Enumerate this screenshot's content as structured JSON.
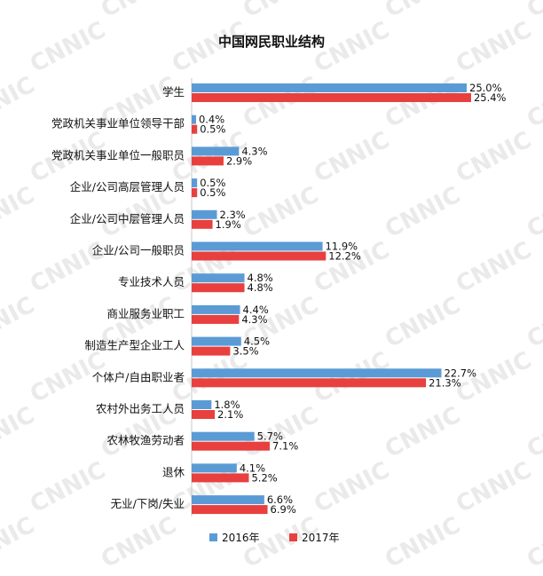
{
  "chart_data": {
    "type": "bar",
    "orientation": "horizontal",
    "title": "中国网民职业结构",
    "xlabel": "",
    "ylabel": "",
    "xlim": [
      0,
      30
    ],
    "unit": "%",
    "grid": false,
    "legend_position": "bottom",
    "categories": [
      "学生",
      "党政机关事业单位领导干部",
      "党政机关事业单位一般职员",
      "企业/公司高层管理人员",
      "企业/公司中层管理人员",
      "企业/公司一般职员",
      "专业技术人员",
      "商业服务业职工",
      "制造生产型企业工人",
      "个体户/自由职业者",
      "农村外出务工人员",
      "农林牧渔劳动者",
      "退休",
      "无业/下岗/失业"
    ],
    "series": [
      {
        "name": "2016年",
        "color": "#5b9bd5",
        "values": [
          25.0,
          0.4,
          4.3,
          0.5,
          2.3,
          11.9,
          4.8,
          4.4,
          4.5,
          22.7,
          1.8,
          5.7,
          4.1,
          6.6
        ],
        "labels": [
          "25.0%",
          "0.4%",
          "4.3%",
          "0.5%",
          "2.3%",
          "11.9%",
          "4.8%",
          "4.4%",
          "4.5%",
          "22.7%",
          "1.8%",
          "5.7%",
          "4.1%",
          "6.6%"
        ]
      },
      {
        "name": "2017年",
        "color": "#e8403f",
        "values": [
          25.4,
          0.5,
          2.9,
          0.5,
          1.9,
          12.2,
          4.8,
          4.3,
          3.5,
          21.3,
          2.1,
          7.1,
          5.2,
          6.9
        ],
        "labels": [
          "25.4%",
          "0.5%",
          "2.9%",
          "0.5%",
          "1.9%",
          "12.2%",
          "4.8%",
          "4.3%",
          "3.5%",
          "21.3%",
          "2.1%",
          "7.1%",
          "5.2%",
          "6.9%"
        ]
      }
    ]
  },
  "watermark": "CNNIC"
}
